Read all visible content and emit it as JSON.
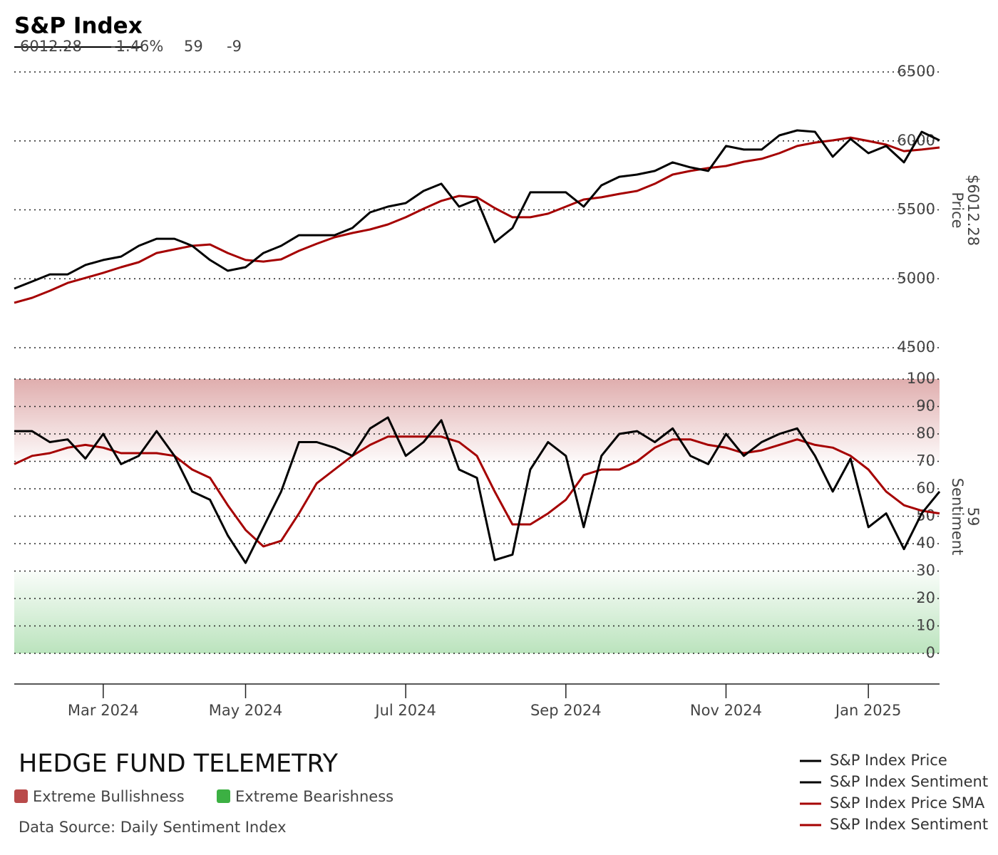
{
  "chart_data": {
    "type": "line",
    "title": "S&P Index",
    "header_values": [
      "6012.28",
      "-1.46%",
      "59",
      "-9"
    ],
    "y_label": [
      "Price",
      "$6012.28"
    ],
    "y2_label": [
      "Sentiment",
      "59"
    ],
    "categories": [
      null,
      null,
      null,
      null,
      null,
      "Mar 2024",
      null,
      null,
      null,
      null,
      null,
      null,
      null,
      "May 2024",
      null,
      null,
      null,
      null,
      null,
      null,
      null,
      null,
      "Jul 2024",
      null,
      null,
      null,
      null,
      null,
      null,
      null,
      null,
      "Sep 2024",
      null,
      null,
      null,
      null,
      null,
      null,
      null,
      null,
      "Nov 2024",
      null,
      null,
      null,
      null,
      null,
      null,
      null,
      "Jan 2025",
      null,
      null,
      null,
      null
    ],
    "series": [
      {
        "name": "S&P Index Price",
        "color": "#000000",
        "values": [
          4929,
          4980,
          5032,
          5032,
          5100,
          5136,
          5161,
          5239,
          5290,
          5290,
          5239,
          5136,
          5058,
          5084,
          5187,
          5239,
          5316,
          5316,
          5316,
          5368,
          5482,
          5523,
          5549,
          5637,
          5689,
          5523,
          5575,
          5265,
          5368,
          5627,
          5627,
          5627,
          5523,
          5678,
          5740,
          5756,
          5782,
          5844,
          5808,
          5782,
          5963,
          5937,
          5937,
          6040,
          6076,
          6066,
          5885,
          6014,
          5911,
          5963,
          5844,
          6066,
          6004
        ]
      },
      {
        "name": "S&P Index Sentiment",
        "color": "#000000",
        "axis": "y2",
        "values": [
          81,
          81,
          77,
          78,
          71,
          80,
          69,
          72,
          81,
          72,
          59,
          56,
          43,
          33,
          46,
          59,
          77,
          77,
          75,
          72,
          82,
          86,
          72,
          77,
          85,
          67,
          64,
          34,
          36,
          67,
          77,
          72,
          46,
          72,
          80,
          81,
          77,
          82,
          72,
          69,
          80,
          72,
          77,
          80,
          82,
          72,
          59,
          71,
          46,
          51,
          38,
          51,
          59
        ]
      },
      {
        "name": "S&P Index Price SMA",
        "color": "#a50000",
        "values": [
          4826,
          4862,
          4913,
          4970,
          5006,
          5043,
          5084,
          5120,
          5187,
          5213,
          5239,
          5249,
          5187,
          5136,
          5125,
          5141,
          5203,
          5254,
          5301,
          5332,
          5358,
          5394,
          5446,
          5508,
          5565,
          5601,
          5591,
          5513,
          5446,
          5446,
          5472,
          5523,
          5575,
          5591,
          5616,
          5637,
          5689,
          5756,
          5782,
          5803,
          5818,
          5849,
          5870,
          5911,
          5963,
          5988,
          6004,
          6024,
          5999,
          5973,
          5926,
          5937,
          5952
        ]
      },
      {
        "name": "S&P Index Sentiment",
        "color": "#a50000",
        "axis": "y2",
        "values": [
          69,
          72,
          73,
          75,
          76,
          75,
          73,
          73,
          73,
          72,
          67,
          64,
          54,
          45,
          39,
          41,
          51,
          62,
          67,
          72,
          76,
          79,
          79,
          79,
          79,
          77,
          72,
          59,
          47,
          47,
          51,
          56,
          65,
          67,
          67,
          70,
          75,
          78,
          78,
          76,
          75,
          73,
          74,
          76,
          78,
          76,
          75,
          72,
          67,
          59,
          54,
          52,
          51
        ]
      }
    ],
    "ylim": [
      4500,
      6500
    ],
    "yticks": [
      4500,
      5000,
      5500,
      6000,
      6500
    ],
    "y2lim": [
      0,
      100
    ],
    "y2ticks": [
      0,
      10,
      20,
      30,
      40,
      50,
      60,
      70,
      80,
      90,
      100
    ],
    "grid": true,
    "bands": [
      {
        "name": "Extreme Bullishness",
        "color": "#b94a4a",
        "range": [
          70,
          100
        ]
      },
      {
        "name": "Extreme Bearishness",
        "color": "#3cb043",
        "range": [
          0,
          30
        ]
      }
    ],
    "brand": "HEDGE FUND TELEMETRY",
    "source": "Data Source: Daily Sentiment Index"
  }
}
